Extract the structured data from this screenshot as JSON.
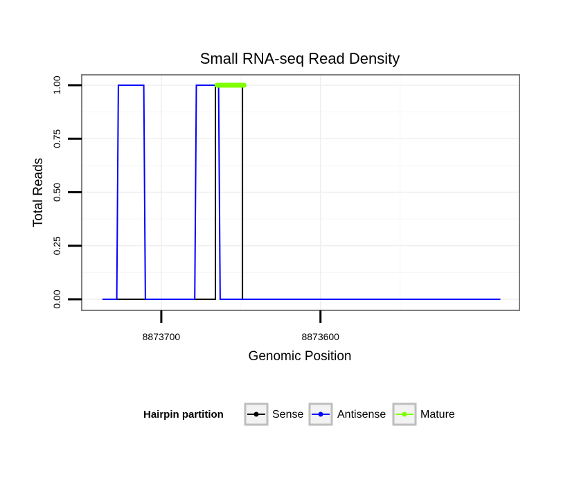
{
  "chart_data": {
    "type": "line",
    "title": "Small RNA-seq Read Density",
    "xlabel": "Genomic Position",
    "ylabel": "Total Reads",
    "x_reversed": true,
    "xlim": [
      8873750,
      8873475
    ],
    "ylim": [
      0,
      1
    ],
    "x_ticks": [
      8873700,
      8873600
    ],
    "x_tick_labels": [
      "8873700",
      "8873600"
    ],
    "y_ticks": [
      0,
      0.25,
      0.5,
      0.75,
      1
    ],
    "y_tick_labels": [
      "0.00",
      "0.25",
      "0.50",
      "0.75",
      "1.00"
    ],
    "grid": true,
    "legend": {
      "title": "Hairpin partition",
      "placement": "bottom",
      "entries": [
        "Sense",
        "Antisense",
        "Mature"
      ]
    },
    "series": [
      {
        "name": "Sense",
        "color": "#000000",
        "x": [
          8873737,
          8873666,
          8873666,
          8873649,
          8873649,
          8873487
        ],
        "y": [
          0,
          0,
          1,
          1,
          0,
          0
        ]
      },
      {
        "name": "Antisense",
        "color": "#0000ff",
        "x": [
          8873737,
          8873728,
          8873727,
          8873711,
          8873710,
          8873679,
          8873678,
          8873664,
          8873663,
          8873649,
          8873648,
          8873487
        ],
        "y": [
          0,
          0,
          1,
          1,
          0,
          0,
          1,
          1,
          0,
          0,
          0,
          0
        ]
      },
      {
        "name": "Mature",
        "color": "#7fff00",
        "x": [
          8873665,
          8873648
        ],
        "y": [
          1,
          1
        ]
      }
    ]
  }
}
